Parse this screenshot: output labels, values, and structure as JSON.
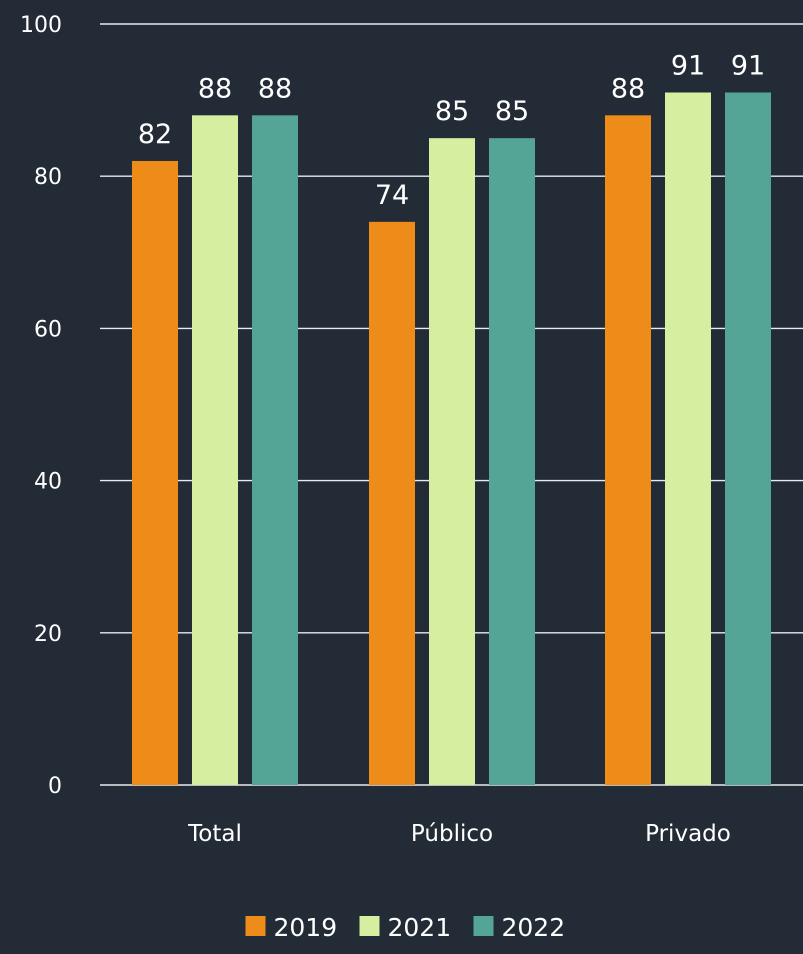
{
  "chart_data": {
    "type": "bar",
    "title": "",
    "xlabel": "",
    "ylabel": "",
    "categories": [
      "Total",
      "Público",
      "Privado"
    ],
    "series": [
      {
        "name": "2019",
        "color": "#ee8c1a",
        "values": [
          82,
          74,
          88
        ]
      },
      {
        "name": "2021",
        "color": "#d6eea0",
        "values": [
          88,
          85,
          91
        ]
      },
      {
        "name": "2022",
        "color": "#54a596",
        "values": [
          88,
          85,
          91
        ]
      }
    ],
    "ylim": [
      0,
      100
    ],
    "yticks": [
      0,
      20,
      40,
      60,
      80,
      100
    ],
    "grid": true,
    "legend_position": "bottom-center",
    "background": "#232b36"
  }
}
